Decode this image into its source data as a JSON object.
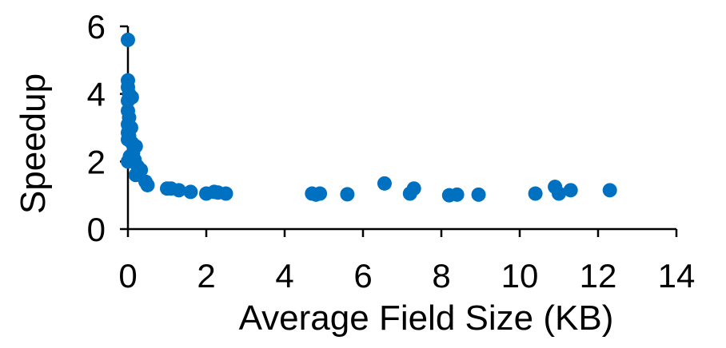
{
  "chart_data": {
    "type": "scatter",
    "title": "",
    "xlabel": "Average Field Size (KB)",
    "ylabel": "Speedup",
    "xlim": [
      0,
      14
    ],
    "ylim": [
      0,
      6
    ],
    "x_ticks": [
      0,
      2,
      4,
      6,
      8,
      10,
      12,
      14
    ],
    "y_ticks": [
      0,
      2,
      4,
      6
    ],
    "grid": false,
    "legend": "none",
    "marker_color": "#0070C0",
    "axis_color": "#000000",
    "series": [
      {
        "points": [
          [
            0.0,
            5.6
          ],
          [
            0.0,
            4.4
          ],
          [
            0.0,
            4.2
          ],
          [
            0.03,
            4.0
          ],
          [
            0.0,
            3.8
          ],
          [
            0.1,
            3.9
          ],
          [
            0.0,
            3.5
          ],
          [
            0.03,
            3.3
          ],
          [
            0.0,
            3.1
          ],
          [
            0.08,
            3.0
          ],
          [
            0.0,
            2.85
          ],
          [
            0.03,
            2.75
          ],
          [
            0.0,
            2.65
          ],
          [
            0.1,
            2.55
          ],
          [
            0.2,
            2.45
          ],
          [
            0.13,
            2.25
          ],
          [
            0.05,
            2.15
          ],
          [
            0.17,
            2.05
          ],
          [
            0.0,
            2.0
          ],
          [
            0.25,
            1.85
          ],
          [
            0.33,
            1.75
          ],
          [
            0.2,
            1.6
          ],
          [
            0.45,
            1.4
          ],
          [
            0.5,
            1.3
          ],
          [
            1.0,
            1.2
          ],
          [
            1.1,
            1.2
          ],
          [
            1.3,
            1.15
          ],
          [
            1.6,
            1.1
          ],
          [
            2.0,
            1.05
          ],
          [
            2.2,
            1.1
          ],
          [
            2.3,
            1.08
          ],
          [
            2.5,
            1.05
          ],
          [
            4.7,
            1.05
          ],
          [
            4.8,
            1.02
          ],
          [
            4.9,
            1.05
          ],
          [
            5.6,
            1.03
          ],
          [
            6.55,
            1.35
          ],
          [
            7.2,
            1.05
          ],
          [
            7.3,
            1.2
          ],
          [
            8.2,
            1.0
          ],
          [
            8.4,
            1.02
          ],
          [
            8.95,
            1.02
          ],
          [
            10.4,
            1.05
          ],
          [
            10.9,
            1.25
          ],
          [
            11.0,
            1.05
          ],
          [
            11.3,
            1.15
          ],
          [
            12.3,
            1.15
          ]
        ]
      }
    ]
  }
}
